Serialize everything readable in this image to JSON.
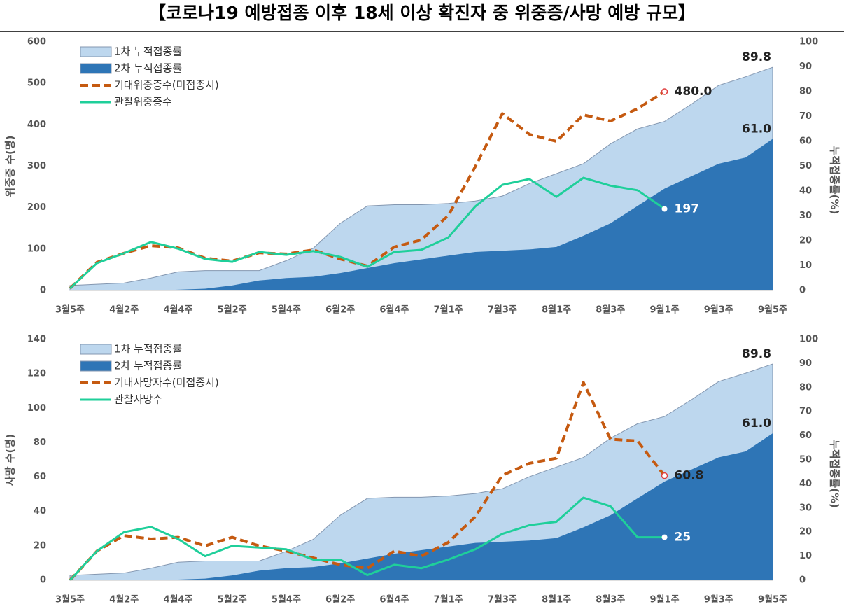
{
  "title": "【코로나19 예방접종 이후 18세 이상 확진자 중 위중증/사망 예방 규모】",
  "chart_data": [
    {
      "type": "combo",
      "legend": "upper left",
      "ylabel": "위중증 수(명)",
      "y2label": "누적접종률(%)",
      "categories": [
        "3월5주",
        null,
        "4월2주",
        null,
        "4월4주",
        null,
        "5월2주",
        null,
        "5월4주",
        null,
        "6월2주",
        null,
        "6월4주",
        null,
        "7월1주",
        null,
        "7월3주",
        null,
        "8월1주",
        null,
        "8월3주",
        null,
        "9월1주",
        null,
        "9월3주",
        null,
        "9월5주"
      ],
      "ylim": [
        0,
        600
      ],
      "yticks": [
        0,
        100,
        200,
        300,
        400,
        500,
        600
      ],
      "y2lim": [
        0,
        100
      ],
      "y2ticks": [
        0,
        10,
        20,
        30,
        40,
        50,
        60,
        70,
        80,
        90,
        100
      ],
      "series": [
        {
          "name": "1차 누적접종률",
          "kind": "area",
          "axis": "y2",
          "color": "#bdd7ee",
          "values": [
            2,
            2.5,
            3,
            5,
            7.5,
            8,
            8,
            8,
            12,
            17,
            27,
            34,
            34.5,
            34.5,
            35,
            36,
            38,
            43,
            47,
            51,
            59,
            65,
            68,
            75,
            82.5,
            86,
            89.8
          ],
          "value_labels": [
            null,
            null,
            null,
            null,
            null,
            null,
            null,
            null,
            null,
            null,
            null,
            null,
            null,
            null,
            null,
            null,
            null,
            null,
            null,
            null,
            null,
            null,
            null,
            null,
            null,
            null,
            "89.8"
          ]
        },
        {
          "name": "2차 누적접종률",
          "kind": "area",
          "axis": "y2",
          "color": "#2e75b6",
          "values": [
            0,
            0,
            0,
            0,
            0.3,
            0.7,
            2,
            4,
            5,
            5.5,
            7,
            9,
            11,
            12.5,
            14,
            15.5,
            16,
            16.5,
            17.5,
            22,
            27,
            34,
            41,
            46,
            51,
            53.5,
            61
          ],
          "value_labels": [
            null,
            null,
            null,
            null,
            null,
            null,
            null,
            null,
            null,
            null,
            null,
            null,
            null,
            null,
            null,
            null,
            null,
            null,
            null,
            null,
            null,
            null,
            null,
            null,
            null,
            null,
            "61.0"
          ]
        },
        {
          "name": "기대위중증수(미접종시)",
          "kind": "line",
          "dashed": true,
          "color": "#c55a11",
          "values": [
            5,
            68,
            90,
            108,
            103,
            78,
            71,
            91,
            88,
            98,
            76,
            59,
            105,
            122,
            181,
            299,
            427,
            377,
            360,
            424,
            409,
            439,
            480,
            null,
            null,
            null,
            null
          ],
          "value_labels": [
            null,
            null,
            null,
            null,
            null,
            null,
            null,
            null,
            null,
            null,
            null,
            null,
            null,
            null,
            null,
            null,
            null,
            null,
            null,
            null,
            null,
            null,
            "480.0",
            null,
            null,
            null,
            null
          ]
        },
        {
          "name": "관찰위중증수",
          "kind": "line",
          "dashed": false,
          "color": "#1fcf9a",
          "values": [
            5,
            66,
            90,
            117,
            101,
            76,
            69,
            93,
            86,
            95,
            81,
            57,
            93,
            98,
            128,
            203,
            255,
            269,
            226,
            272,
            253,
            242,
            197,
            null,
            null,
            null,
            null
          ]
        }
      ]
    },
    {
      "type": "combo",
      "legend": "upper left",
      "ylabel": "사망 수(명)",
      "y2label": "누적접종률(%)",
      "categories": [
        "3월5주",
        null,
        "4월2주",
        null,
        "4월4주",
        null,
        "5월2주",
        null,
        "5월4주",
        null,
        "6월2주",
        null,
        "6월4주",
        null,
        "7월1주",
        null,
        "7월3주",
        null,
        "8월1주",
        null,
        "8월3주",
        null,
        "9월1주",
        null,
        "9월3주",
        null,
        "9월5주"
      ],
      "ylim": [
        0,
        140
      ],
      "yticks": [
        0,
        20,
        40,
        60,
        80,
        100,
        120,
        140
      ],
      "y2lim": [
        0,
        100
      ],
      "y2ticks": [
        0,
        10,
        20,
        30,
        40,
        50,
        60,
        70,
        80,
        90,
        100
      ],
      "series": [
        {
          "name": "1차 누적접종률",
          "kind": "area",
          "axis": "y2",
          "color": "#bdd7ee",
          "values": [
            2,
            2.5,
            3,
            5,
            7.5,
            8,
            8,
            8,
            12,
            17,
            27,
            34,
            34.5,
            34.5,
            35,
            36,
            38,
            43,
            47,
            51,
            59,
            65,
            68,
            75,
            82.5,
            86,
            89.8
          ],
          "value_labels": [
            null,
            null,
            null,
            null,
            null,
            null,
            null,
            null,
            null,
            null,
            null,
            null,
            null,
            null,
            null,
            null,
            null,
            null,
            null,
            null,
            null,
            null,
            null,
            null,
            null,
            null,
            "89.8"
          ]
        },
        {
          "name": "2차 누적접종률",
          "kind": "area",
          "axis": "y2",
          "color": "#2e75b6",
          "values": [
            0,
            0,
            0,
            0,
            0.3,
            0.7,
            2,
            4,
            5,
            5.5,
            7,
            9,
            11,
            12.5,
            14,
            15.5,
            16,
            16.5,
            17.5,
            22,
            27,
            34,
            41,
            46,
            51,
            53.5,
            61
          ],
          "value_labels": [
            null,
            null,
            null,
            null,
            null,
            null,
            null,
            null,
            null,
            null,
            null,
            null,
            null,
            null,
            null,
            null,
            null,
            null,
            null,
            null,
            null,
            null,
            null,
            null,
            null,
            null,
            "61.0"
          ]
        },
        {
          "name": "기대사망자수(미접종시)",
          "kind": "line",
          "dashed": true,
          "color": "#c55a11",
          "values": [
            0,
            17,
            26,
            24,
            25,
            20,
            25,
            20,
            17,
            13,
            9,
            7,
            17,
            14,
            22,
            37,
            61,
            68,
            71,
            115,
            82,
            81,
            60.8,
            null,
            null,
            null,
            null
          ],
          "value_labels": [
            null,
            null,
            null,
            null,
            null,
            null,
            null,
            null,
            null,
            null,
            null,
            null,
            null,
            null,
            null,
            null,
            null,
            null,
            null,
            null,
            null,
            null,
            "60.8",
            null,
            null,
            null,
            null
          ]
        },
        {
          "name": "관찰사망수",
          "kind": "line",
          "dashed": false,
          "color": "#1fcf9a",
          "values": [
            0,
            17,
            28,
            31,
            24,
            14,
            20,
            19,
            18,
            12,
            12,
            3,
            9,
            7,
            12,
            18,
            27,
            32,
            34,
            48,
            43,
            25,
            25,
            null,
            null,
            null,
            null
          ]
        }
      ]
    }
  ]
}
